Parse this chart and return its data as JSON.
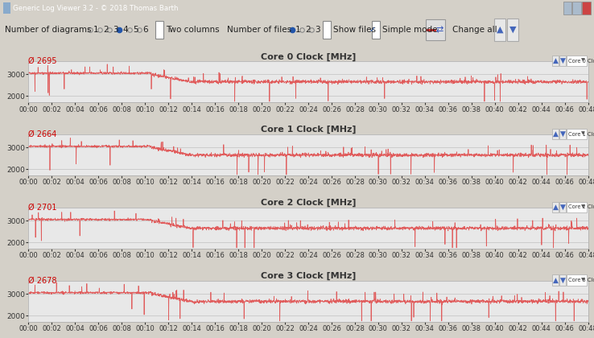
{
  "title_bar": "Generic Log Viewer 3.2 - © 2018 Thomas Barth",
  "cores": [
    {
      "title": "Core 0 Clock [MHz]",
      "avg": "2695",
      "label": "Core 0 Clock [MHz]"
    },
    {
      "title": "Core 1 Clock [MHz]",
      "avg": "2664",
      "label": "Core 1 Clock [MHz]"
    },
    {
      "title": "Core 2 Clock [MHz]",
      "avg": "2701",
      "label": "Core 2 Clock [MHz]"
    },
    {
      "title": "Core 3 Clock [MHz]",
      "avg": "2678",
      "label": "Core 3 Clock [MHz]"
    }
  ],
  "x_ticks": [
    "00:00",
    "00:02",
    "00:04",
    "00:06",
    "00:08",
    "00:10",
    "00:12",
    "00:14",
    "00:16",
    "00:18",
    "00:20",
    "00:22",
    "00:24",
    "00:26",
    "00:28",
    "00:30",
    "00:32",
    "00:34",
    "00:36",
    "00:38",
    "00:40",
    "00:42",
    "00:44",
    "00:46",
    "00:48"
  ],
  "y_ticks": [
    2000,
    3000
  ],
  "y_lim": [
    1700,
    3600
  ],
  "bg_color": "#d4d0c8",
  "plot_bg_color": "#e8e8e8",
  "line_color": "#e05050",
  "avg_color": "#cc0000",
  "title_bar_color": "#6688bb",
  "toolbar_bg": "#e8e4dc",
  "separator_color": "#aaaaaa",
  "panel_header_bg": "#d4d0c8",
  "grid_color": "#c0c0c0",
  "spine_color": "#aaaaaa"
}
